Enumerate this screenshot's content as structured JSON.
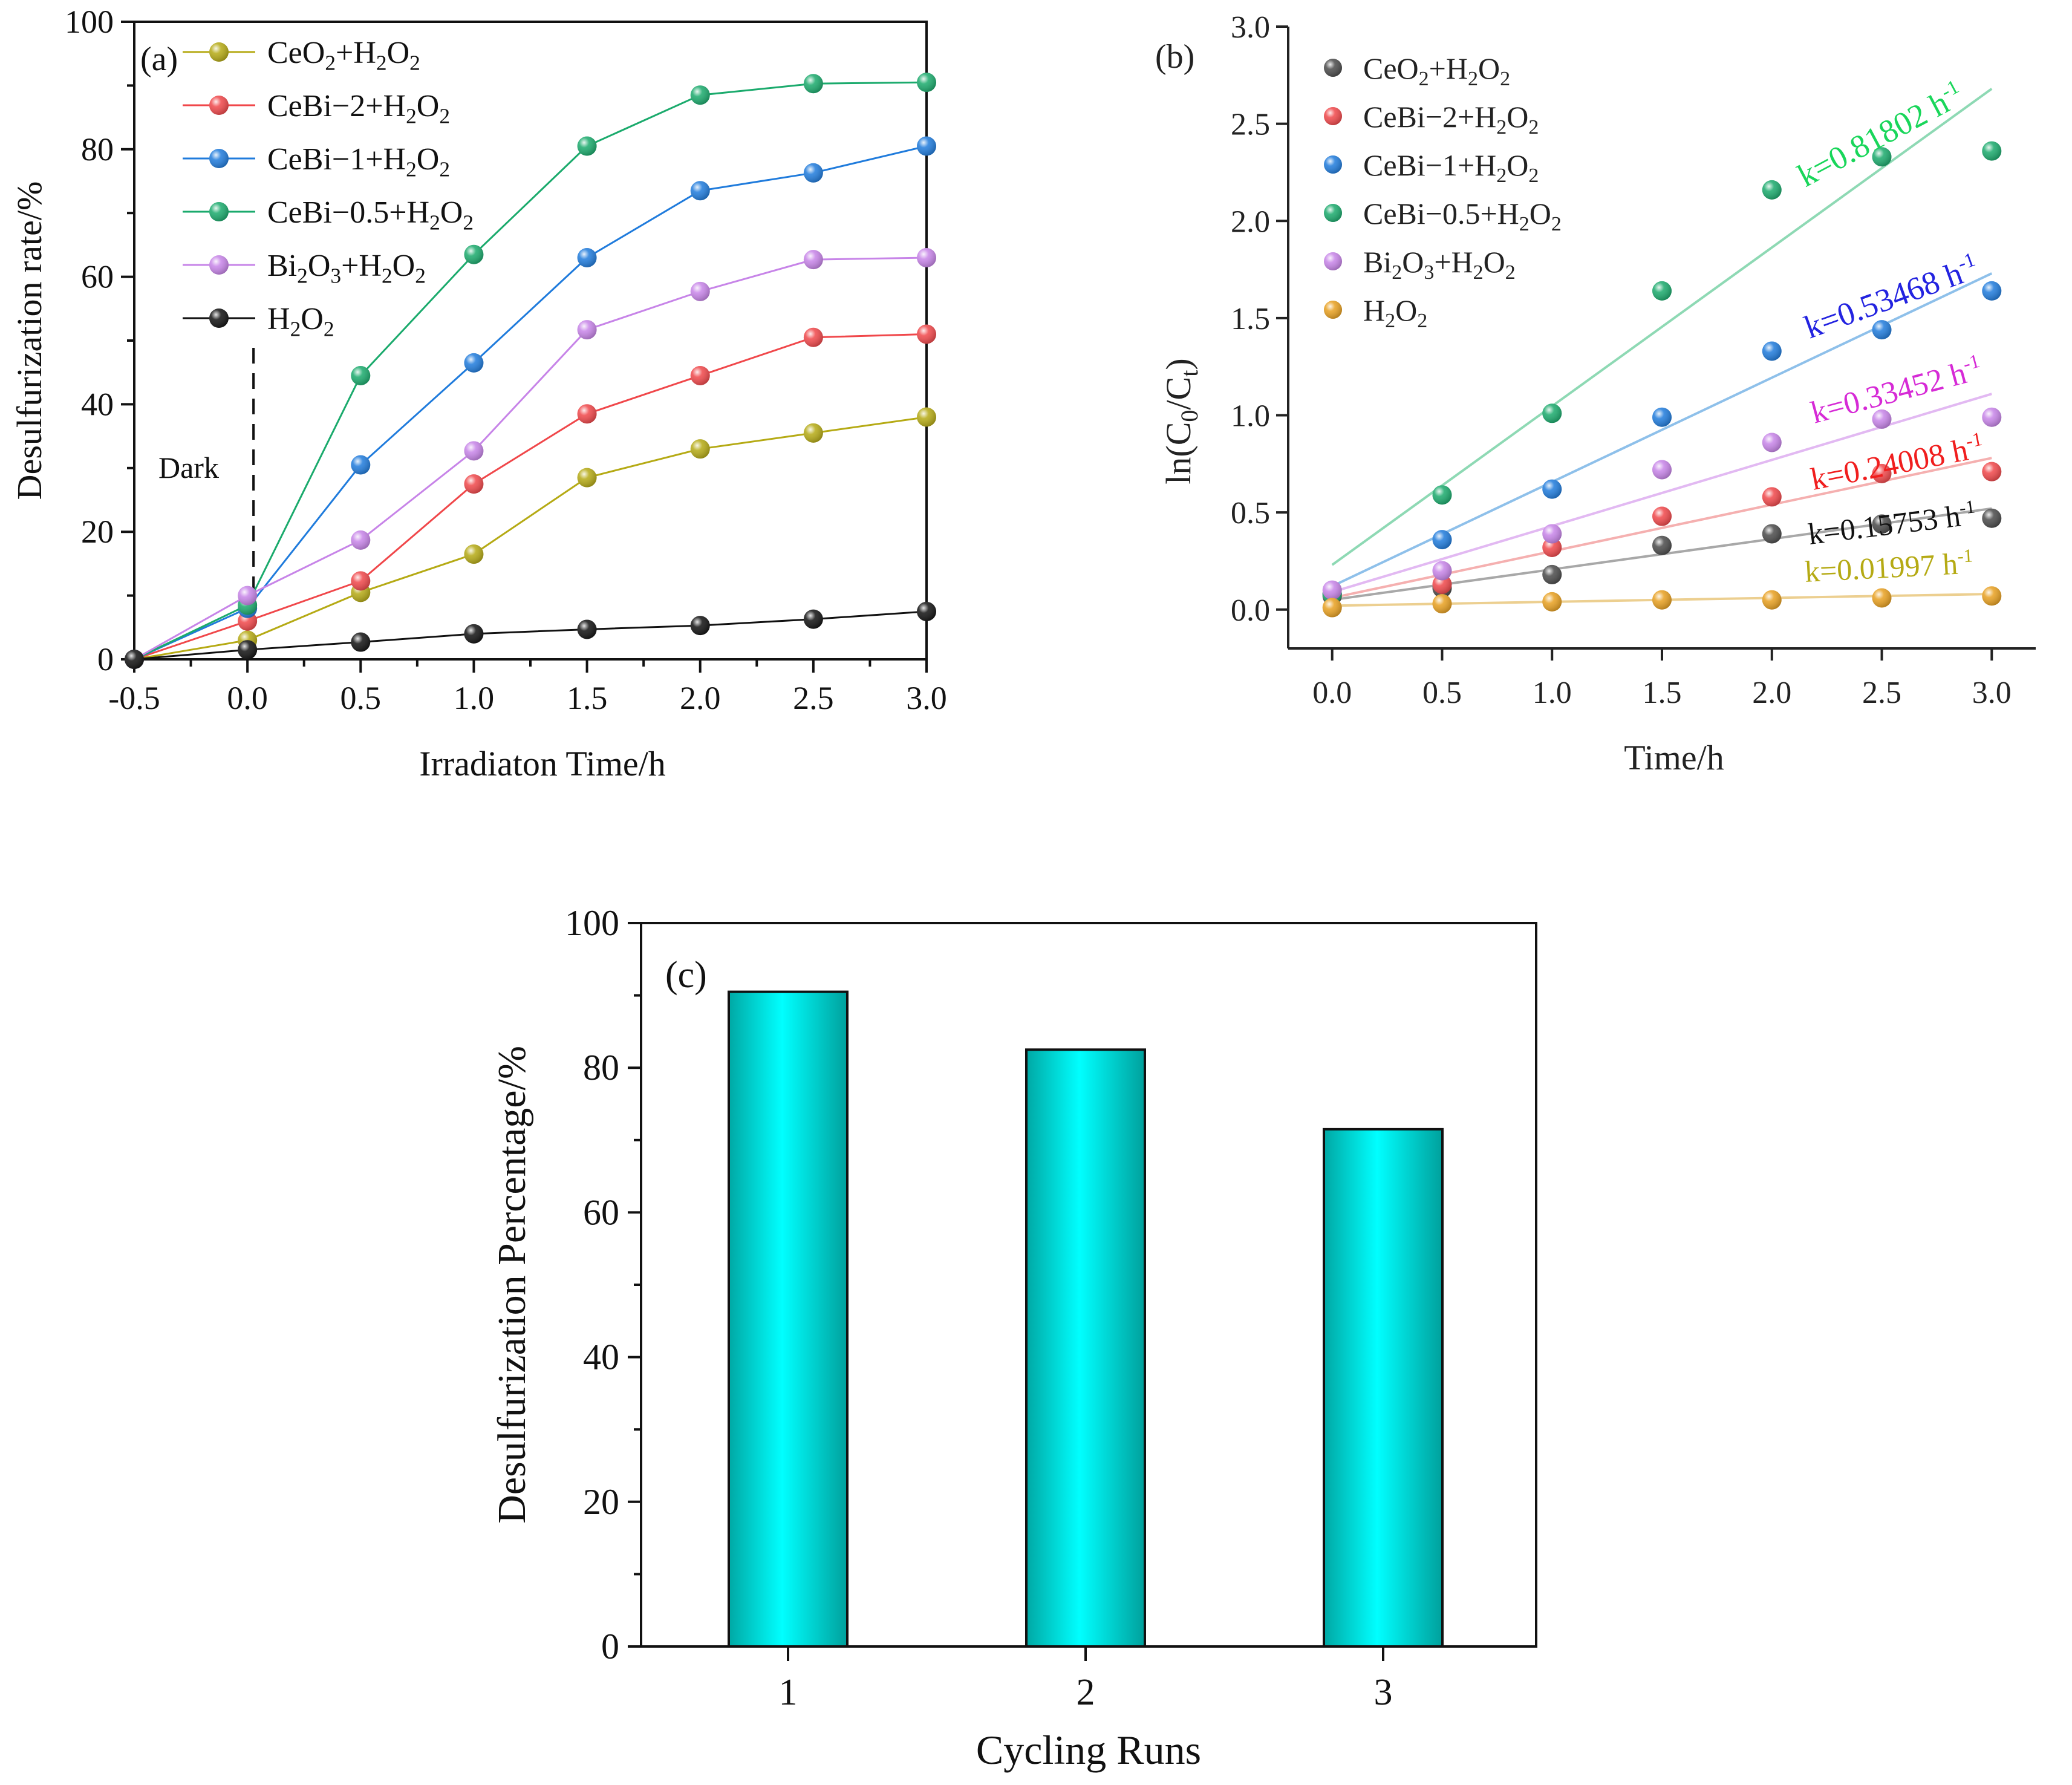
{
  "chart_data": [
    {
      "panel": "(a)",
      "type": "line",
      "xlabel": "Irradiaton Time/h",
      "ylabel": "Desulfurization rate/%",
      "xlim": [
        -0.5,
        3.0
      ],
      "ylim": [
        0,
        100
      ],
      "x_ticks": [
        "-0.5",
        "0.0",
        "0.5",
        "1.0",
        "1.5",
        "2.0",
        "2.5",
        "3.0"
      ],
      "y_ticks": [
        "0",
        "20",
        "40",
        "60",
        "80",
        "100"
      ],
      "annotation": "Dark",
      "x": [
        -0.5,
        0.0,
        0.5,
        1.0,
        1.5,
        2.0,
        2.5,
        3.0
      ],
      "legend_position": "top-left",
      "series": [
        {
          "name": "CeO₂+H₂O₂",
          "color": "#b5aa14",
          "values": [
            0,
            3,
            10.5,
            16.5,
            28.5,
            33,
            35.5,
            38
          ]
        },
        {
          "name": "CeBi−2+H₂O₂",
          "color": "#f0474a",
          "values": [
            0,
            6,
            12.3,
            27.5,
            38.5,
            44.5,
            50.5,
            51
          ]
        },
        {
          "name": "CeBi−1+H₂O₂",
          "color": "#1f7bdc",
          "values": [
            0,
            8,
            30.5,
            46.5,
            63,
            73.5,
            76.3,
            80.5
          ]
        },
        {
          "name": "CeBi−0.5+H₂O₂",
          "color": "#1aaa6c",
          "values": [
            0,
            8.5,
            44.5,
            63.5,
            80.5,
            88.5,
            90.3,
            90.5
          ]
        },
        {
          "name": "Bi₂O₃+H₂O₂",
          "color": "#c784e8",
          "values": [
            0,
            10,
            18.7,
            32.7,
            51.7,
            57.7,
            62.7,
            63
          ]
        },
        {
          "name": "H₂O₂",
          "color": "#111111",
          "values": [
            0,
            1.5,
            2.7,
            4,
            4.7,
            5.3,
            6.3,
            7.5
          ]
        }
      ]
    },
    {
      "panel": "(b)",
      "type": "scatter",
      "xlabel": "Time/h",
      "ylabel": "ln(C0/Ct)",
      "xlim": [
        -0.2,
        3.2
      ],
      "ylim": [
        -0.2,
        3.0
      ],
      "x_ticks": [
        "0.0",
        "0.5",
        "1.0",
        "1.5",
        "2.0",
        "2.5",
        "3.0"
      ],
      "y_ticks": [
        "0.0",
        "0.5",
        "1.0",
        "1.5",
        "2.0",
        "2.5",
        "3.0"
      ],
      "x": [
        0,
        0.5,
        1.0,
        1.5,
        2.0,
        2.5,
        3.0
      ],
      "legend_position": "top-left",
      "series": [
        {
          "name": "CeO₂+H₂O₂",
          "color": "#4a4a4a",
          "values": [
            0.07,
            0.11,
            0.18,
            0.33,
            0.39,
            0.44,
            0.47
          ]
        },
        {
          "name": "CeBi−2+H₂O₂",
          "color": "#f0474a",
          "values": [
            0.08,
            0.13,
            0.32,
            0.48,
            0.58,
            0.7,
            0.71
          ]
        },
        {
          "name": "CeBi−1+H₂O₂",
          "color": "#1f7bdc",
          "values": [
            0.08,
            0.36,
            0.62,
            0.99,
            1.33,
            1.44,
            1.64
          ]
        },
        {
          "name": "CeBi−0.5+H₂O₂",
          "color": "#1aaa6c",
          "values": [
            0.08,
            0.59,
            1.01,
            1.64,
            2.16,
            2.33,
            2.36
          ]
        },
        {
          "name": "Bi₂O₃+H₂O₂",
          "color": "#c784e8",
          "values": [
            0.1,
            0.2,
            0.39,
            0.72,
            0.86,
            0.98,
            0.99
          ]
        },
        {
          "name": "H₂O₂",
          "color": "#e8a020",
          "values": [
            0.01,
            0.03,
            0.04,
            0.05,
            0.05,
            0.06,
            0.07
          ]
        }
      ],
      "fits": [
        {
          "series": "CeBi−0.5+H₂O₂",
          "label": "k=0.81802 h",
          "unit_sup": "-1",
          "label_color": "#19d65a",
          "line_color": "#8ed9b4",
          "y0": 0.23,
          "y1": 2.68
        },
        {
          "series": "CeBi−1+H₂O₂",
          "label": "k=0.53468 h",
          "unit_sup": "-1",
          "label_color": "#2323e0",
          "line_color": "#8ec0ea",
          "y0": 0.12,
          "y1": 1.73
        },
        {
          "series": "Bi₂O₃+H₂O₂",
          "label": "k=0.33452 h",
          "unit_sup": "-1",
          "label_color": "#d62ad6",
          "line_color": "#e2b9f2",
          "y0": 0.09,
          "y1": 1.11
        },
        {
          "series": "CeBi−2+H₂O₂",
          "label": "k=0.24008 h",
          "unit_sup": "-1",
          "label_color": "#f01e1e",
          "line_color": "#f5b0b0",
          "y0": 0.06,
          "y1": 0.78
        },
        {
          "series": "CeO₂+H₂O₂",
          "label": "k=0.15753 h",
          "unit_sup": "-1",
          "label_color": "#111111",
          "line_color": "#a8a8a8",
          "y0": 0.05,
          "y1": 0.52
        },
        {
          "series": "H₂O₂",
          "label": "k=0.01997 h",
          "unit_sup": "-1",
          "label_color": "#b5aa14",
          "line_color": "#eccf90",
          "y0": 0.02,
          "y1": 0.08
        }
      ]
    },
    {
      "panel": "(c)",
      "type": "bar",
      "xlabel": "Cycling Runs",
      "ylabel": "Desulfurization Percentage/%",
      "categories": [
        "1",
        "2",
        "3"
      ],
      "values": [
        90.5,
        82.5,
        71.5
      ],
      "ylim": [
        0,
        100
      ],
      "y_ticks": [
        "0",
        "20",
        "40",
        "60",
        "80",
        "100"
      ],
      "bar_color": "#00e0dc"
    }
  ]
}
